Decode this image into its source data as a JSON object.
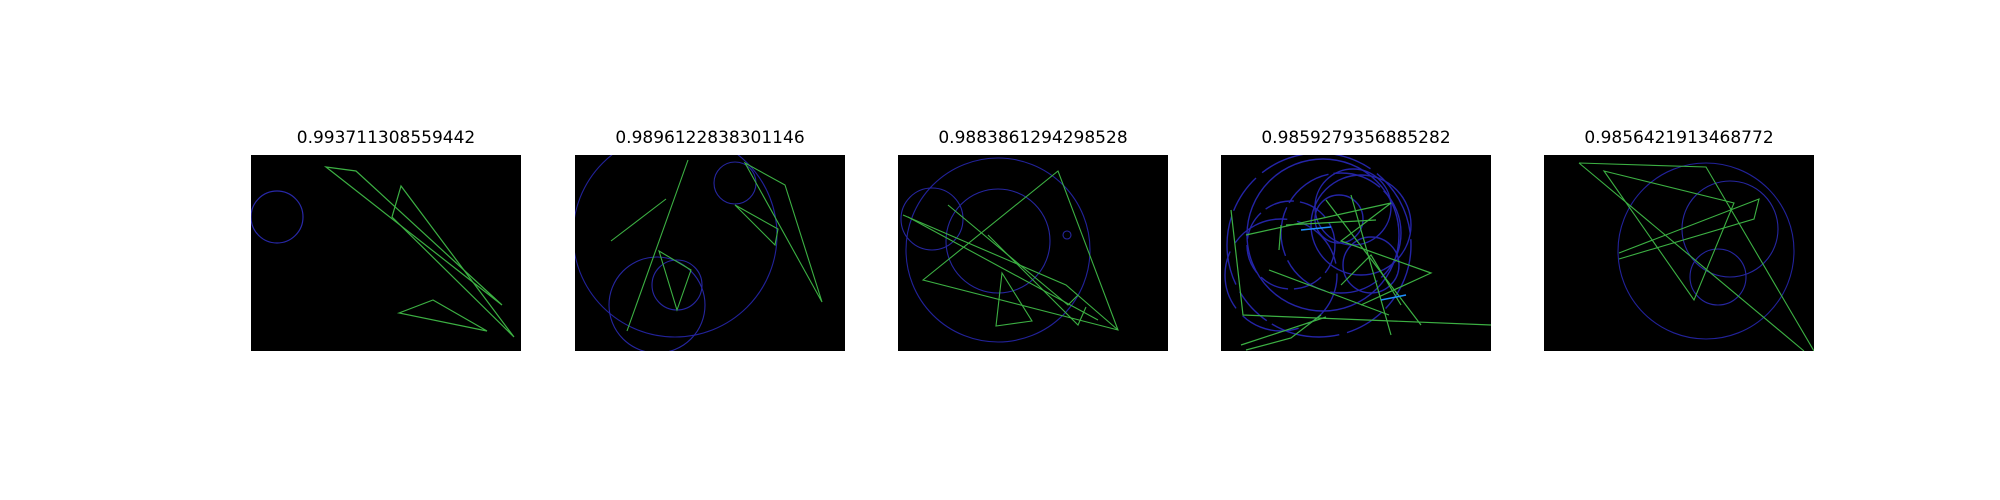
{
  "colors": {
    "background": "#ffffff",
    "canvas": "#000000",
    "green_lines": "#3cb043",
    "blue_lines": "#2020a0",
    "cyan_accent": "#1e90ff"
  },
  "panels": [
    {
      "title": "0.993711308559442"
    },
    {
      "title": "0.9896122838301146"
    },
    {
      "title": "0.9883861294298528"
    },
    {
      "title": "0.9859279356885282"
    },
    {
      "title": "0.9856421913468772"
    }
  ]
}
